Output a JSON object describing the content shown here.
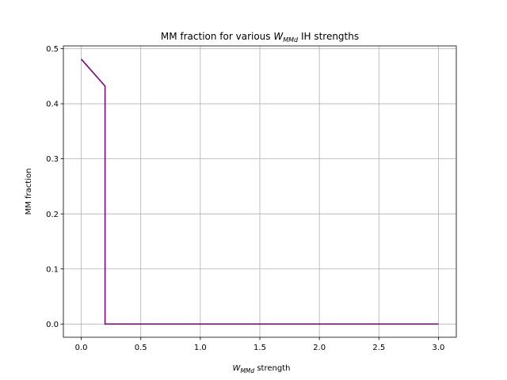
{
  "chart_data": {
    "type": "line",
    "title": {
      "prefix": "MM fraction for various ",
      "symbol": "W",
      "subscript": "MMd",
      "suffix": " IH strengths"
    },
    "xlabel": {
      "symbol": "W",
      "subscript": "MMd",
      "suffix": " strength"
    },
    "ylabel": "MM fraction",
    "xlim": [
      -0.15,
      3.15
    ],
    "ylim": [
      -0.024,
      0.505
    ],
    "xticks": [
      0.0,
      0.5,
      1.0,
      1.5,
      2.0,
      2.5,
      3.0
    ],
    "xtick_labels": [
      "0.0",
      "0.5",
      "1.0",
      "1.5",
      "2.0",
      "2.5",
      "3.0"
    ],
    "yticks": [
      0.0,
      0.1,
      0.2,
      0.3,
      0.4,
      0.5
    ],
    "ytick_labels": [
      "0.0",
      "0.1",
      "0.2",
      "0.3",
      "0.4",
      "0.5"
    ],
    "grid": true,
    "series": [
      {
        "color": "#800080",
        "x": [
          0.0,
          0.2,
          0.2,
          0.21,
          3.0
        ],
        "y": [
          0.481,
          0.432,
          0.0,
          0.0,
          0.0
        ]
      }
    ]
  }
}
